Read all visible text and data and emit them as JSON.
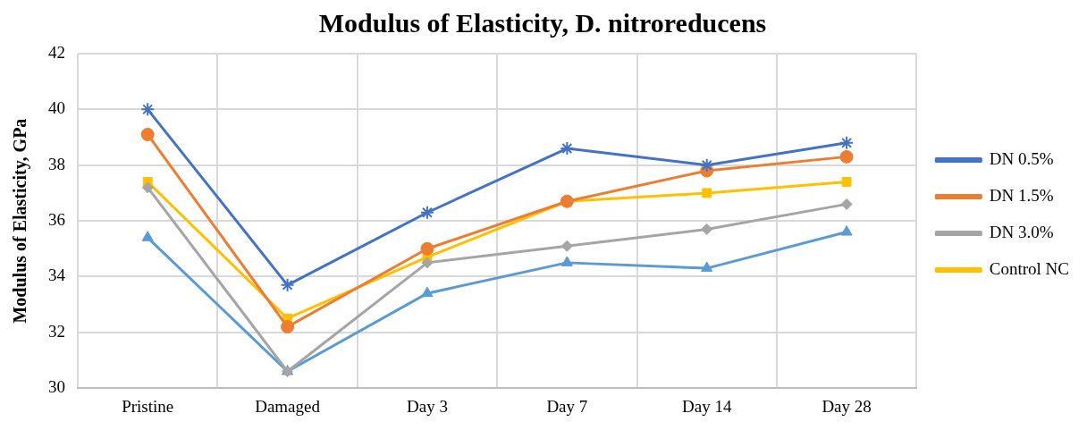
{
  "chart_data": {
    "type": "line",
    "title": "Modulus of Elasticity, D. nitroreducens",
    "ylabel": "Modulus of Elasticity, GPa",
    "categories": [
      "Pristine",
      "Damaged",
      "Day 3",
      "Day 7",
      "Day 14",
      "Day 28"
    ],
    "series": [
      {
        "name": "DN 0.5%",
        "color": "#4472c4",
        "marker": "cross",
        "values": [
          40.0,
          33.7,
          36.3,
          38.6,
          38.0,
          38.8
        ]
      },
      {
        "name": "DN 1.5%",
        "color": "#ed7d31",
        "marker": "circle",
        "values": [
          39.1,
          32.2,
          35.0,
          36.7,
          37.8,
          38.3
        ]
      },
      {
        "name": "DN 3.0%",
        "color": "#a5a5a5",
        "marker": "diamond",
        "values": [
          37.2,
          30.6,
          34.5,
          35.1,
          35.7,
          36.6
        ]
      },
      {
        "name": "Control NC",
        "color": "#ffc000",
        "marker": "square",
        "values": [
          37.4,
          32.5,
          34.7,
          36.7,
          37.0,
          37.4
        ]
      },
      {
        "color": "#5b9bd5",
        "marker": "triangle",
        "values": [
          35.4,
          30.6,
          33.4,
          34.5,
          34.3,
          35.6
        ]
      }
    ],
    "ylim": [
      30,
      42
    ],
    "yticks": [
      30,
      32,
      34,
      36,
      38,
      40,
      42
    ],
    "grid": true,
    "legend": "right",
    "line_style": "solid"
  }
}
